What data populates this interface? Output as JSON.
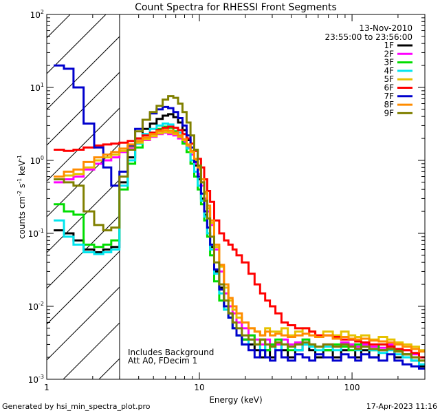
{
  "chart_data": {
    "type": "line",
    "title": "Count Spectra for RHESSI Front Segments",
    "xlabel": "Energy (keV)",
    "ylabel_parts": {
      "main": "counts cm",
      "e1": "-2",
      "mid1": " s",
      "e2": "-1",
      "mid2": " keV",
      "e3": "-1"
    },
    "xscale": "log",
    "yscale": "log",
    "xlim": [
      1,
      300
    ],
    "ylim": [
      0.001,
      100
    ],
    "x_tick_labels": [
      {
        "value": 1,
        "label": "1"
      },
      {
        "value": 10,
        "label": "10"
      },
      {
        "value": 100,
        "label": "100"
      }
    ],
    "y_tick_labels": [
      {
        "value": 0.001,
        "base": "10",
        "exp": "-3"
      },
      {
        "value": 0.01,
        "base": "10",
        "exp": "-2"
      },
      {
        "value": 0.1,
        "base": "10",
        "exp": "-1"
      },
      {
        "value": 1,
        "base": "10",
        "exp": "0"
      },
      {
        "value": 10,
        "base": "10",
        "exp": "1"
      },
      {
        "value": 100,
        "base": "10",
        "exp": "2"
      }
    ],
    "shaded_region": {
      "x_range": [
        1,
        3
      ],
      "style": "diagonal hatch"
    },
    "date": "13-Nov-2010",
    "time_range": "23:55:00 to 23:56:00",
    "annotation_lines": [
      "Includes Background",
      "Att A0, FDecim 1"
    ],
    "legend_position": "top-right",
    "x": [
      1.2,
      1.4,
      1.6,
      1.9,
      2.2,
      2.5,
      2.8,
      3.2,
      3.6,
      4.0,
      4.5,
      5.0,
      5.5,
      6.0,
      6.5,
      7.0,
      7.5,
      8.0,
      8.5,
      9.0,
      9.5,
      10.0,
      10.5,
      11.0,
      11.5,
      12.0,
      13.0,
      14.0,
      15.0,
      16.0,
      17.0,
      18.0,
      20.0,
      22.0,
      24.0,
      26.0,
      28.0,
      30.0,
      33.0,
      36.0,
      40.0,
      45.0,
      50.0,
      55.0,
      60.0,
      70.0,
      80.0,
      90.0,
      100.0,
      110.0,
      120.0,
      140.0,
      160.0,
      180.0,
      200.0,
      230.0,
      260.0,
      290.0
    ],
    "series": [
      {
        "name": "1F",
        "color": "#000000",
        "values": [
          0.11,
          0.1,
          0.08,
          0.06,
          0.055,
          0.06,
          0.065,
          0.5,
          1.1,
          2.0,
          2.7,
          3.2,
          3.7,
          4.1,
          4.3,
          3.9,
          3.3,
          2.6,
          1.9,
          1.3,
          0.85,
          0.55,
          0.3,
          0.18,
          0.1,
          0.065,
          0.03,
          0.018,
          0.01,
          0.008,
          0.006,
          0.004,
          0.0035,
          0.003,
          0.0025,
          0.002,
          0.0025,
          0.002,
          0.003,
          0.0025,
          0.002,
          0.0025,
          0.003,
          0.0025,
          0.002,
          0.0025,
          0.002,
          0.0025,
          0.003,
          0.002,
          0.0025,
          0.002,
          0.0025,
          0.003,
          0.002,
          0.0022,
          0.0018,
          0.0015
        ]
      },
      {
        "name": "2F",
        "color": "#ff00ff",
        "values": [
          0.5,
          0.55,
          0.6,
          0.75,
          0.9,
          1.0,
          1.1,
          1.3,
          1.5,
          1.7,
          1.9,
          2.1,
          2.3,
          2.4,
          2.3,
          2.2,
          2.0,
          1.8,
          1.5,
          1.2,
          0.9,
          0.65,
          0.45,
          0.3,
          0.2,
          0.13,
          0.06,
          0.03,
          0.015,
          0.01,
          0.008,
          0.006,
          0.005,
          0.004,
          0.0035,
          0.003,
          0.0035,
          0.003,
          0.003,
          0.0035,
          0.003,
          0.0032,
          0.0035,
          0.003,
          0.0028,
          0.003,
          0.0028,
          0.0032,
          0.003,
          0.0028,
          0.003,
          0.0028,
          0.0027,
          0.003,
          0.0026,
          0.0025,
          0.0022,
          0.002
        ]
      },
      {
        "name": "3F",
        "color": "#00dd00",
        "values": [
          0.25,
          0.2,
          0.18,
          0.07,
          0.065,
          0.07,
          0.08,
          0.4,
          0.9,
          1.5,
          2.0,
          2.4,
          2.7,
          2.9,
          2.8,
          2.5,
          2.1,
          1.7,
          1.3,
          0.9,
          0.6,
          0.4,
          0.25,
          0.15,
          0.09,
          0.05,
          0.022,
          0.012,
          0.009,
          0.007,
          0.005,
          0.004,
          0.0035,
          0.004,
          0.003,
          0.0035,
          0.0025,
          0.003,
          0.0035,
          0.003,
          0.0025,
          0.003,
          0.0035,
          0.003,
          0.0028,
          0.0025,
          0.003,
          0.0028,
          0.0025,
          0.003,
          0.0028,
          0.0025,
          0.003,
          0.0028,
          0.0025,
          0.0022,
          0.002,
          0.0018
        ]
      },
      {
        "name": "4F",
        "color": "#00e5ee",
        "values": [
          0.15,
          0.09,
          0.07,
          0.055,
          0.052,
          0.055,
          0.06,
          0.45,
          1.0,
          1.7,
          2.3,
          2.7,
          3.0,
          3.2,
          3.1,
          2.8,
          2.4,
          1.9,
          1.45,
          1.0,
          0.7,
          0.45,
          0.28,
          0.17,
          0.1,
          0.06,
          0.028,
          0.015,
          0.009,
          0.007,
          0.005,
          0.004,
          0.003,
          0.0035,
          0.003,
          0.0025,
          0.003,
          0.0028,
          0.0025,
          0.003,
          0.0028,
          0.0025,
          0.003,
          0.0028,
          0.0025,
          0.0028,
          0.0025,
          0.003,
          0.0028,
          0.0025,
          0.0028,
          0.0025,
          0.0023,
          0.0025,
          0.0022,
          0.002,
          0.0018,
          0.0016
        ]
      },
      {
        "name": "5F",
        "color": "#e6c200",
        "values": [
          0.6,
          0.62,
          0.65,
          0.8,
          1.0,
          1.1,
          1.2,
          1.35,
          1.55,
          1.75,
          1.95,
          2.15,
          2.35,
          2.45,
          2.4,
          2.3,
          2.1,
          1.9,
          1.6,
          1.3,
          1.0,
          0.75,
          0.5,
          0.35,
          0.22,
          0.14,
          0.065,
          0.035,
          0.018,
          0.012,
          0.009,
          0.007,
          0.006,
          0.005,
          0.0045,
          0.004,
          0.005,
          0.0045,
          0.0045,
          0.005,
          0.004,
          0.0045,
          0.005,
          0.0045,
          0.004,
          0.0045,
          0.004,
          0.0045,
          0.004,
          0.0038,
          0.004,
          0.0035,
          0.0038,
          0.0035,
          0.0032,
          0.003,
          0.0028,
          0.0025
        ]
      },
      {
        "name": "6F",
        "color": "#ff0000",
        "values": [
          1.4,
          1.35,
          1.4,
          1.5,
          1.6,
          1.65,
          1.7,
          1.75,
          1.85,
          2.0,
          2.2,
          2.4,
          2.6,
          2.8,
          2.9,
          2.8,
          2.6,
          2.3,
          2.0,
          1.7,
          1.35,
          1.05,
          0.8,
          0.55,
          0.38,
          0.27,
          0.15,
          0.1,
          0.08,
          0.07,
          0.06,
          0.05,
          0.04,
          0.028,
          0.02,
          0.015,
          0.012,
          0.01,
          0.008,
          0.006,
          0.0055,
          0.005,
          0.005,
          0.0045,
          0.004,
          0.004,
          0.0038,
          0.0035,
          0.0035,
          0.0033,
          0.0032,
          0.003,
          0.003,
          0.0028,
          0.0026,
          0.0025,
          0.0023,
          0.002
        ]
      },
      {
        "name": "7F",
        "color": "#0000cd",
        "values": [
          20.0,
          18.0,
          10.0,
          3.2,
          1.5,
          0.8,
          0.45,
          0.7,
          1.6,
          2.7,
          3.6,
          4.4,
          5.0,
          5.4,
          5.2,
          4.6,
          3.8,
          3.0,
          2.2,
          1.5,
          0.95,
          0.6,
          0.35,
          0.2,
          0.12,
          0.07,
          0.032,
          0.017,
          0.01,
          0.007,
          0.005,
          0.004,
          0.003,
          0.0025,
          0.002,
          0.0025,
          0.002,
          0.0018,
          0.0025,
          0.002,
          0.0018,
          0.0022,
          0.002,
          0.0018,
          0.0022,
          0.002,
          0.0018,
          0.0022,
          0.002,
          0.0018,
          0.0022,
          0.002,
          0.0018,
          0.0022,
          0.0018,
          0.0016,
          0.0015,
          0.0014
        ]
      },
      {
        "name": "8F",
        "color": "#ff8c00",
        "values": [
          0.6,
          0.7,
          0.75,
          0.95,
          1.1,
          1.2,
          1.3,
          1.45,
          1.65,
          1.85,
          2.05,
          2.3,
          2.5,
          2.6,
          2.55,
          2.4,
          2.2,
          1.95,
          1.65,
          1.35,
          1.05,
          0.8,
          0.55,
          0.37,
          0.24,
          0.15,
          0.07,
          0.037,
          0.02,
          0.013,
          0.01,
          0.008,
          0.006,
          0.005,
          0.0045,
          0.004,
          0.0045,
          0.004,
          0.0042,
          0.004,
          0.0038,
          0.004,
          0.0042,
          0.004,
          0.0038,
          0.004,
          0.0036,
          0.0038,
          0.0036,
          0.0035,
          0.0036,
          0.0034,
          0.0033,
          0.0032,
          0.003,
          0.0028,
          0.0026,
          0.0024
        ]
      },
      {
        "name": "9F",
        "color": "#808000",
        "values": [
          0.55,
          0.5,
          0.45,
          0.2,
          0.13,
          0.11,
          0.12,
          0.6,
          1.4,
          2.5,
          3.6,
          4.6,
          5.6,
          6.8,
          7.6,
          7.2,
          6.0,
          4.6,
          3.3,
          2.2,
          1.4,
          0.85,
          0.5,
          0.28,
          0.16,
          0.09,
          0.04,
          0.02,
          0.012,
          0.008,
          0.006,
          0.005,
          0.004,
          0.0035,
          0.003,
          0.0035,
          0.003,
          0.0028,
          0.0032,
          0.003,
          0.0028,
          0.003,
          0.0032,
          0.003,
          0.0028,
          0.003,
          0.0028,
          0.003,
          0.0028,
          0.0026,
          0.0028,
          0.0026,
          0.0025,
          0.0026,
          0.0024,
          0.0022,
          0.002,
          0.0018
        ]
      }
    ]
  },
  "footer": {
    "left": "Generated by hsi_min_spectra_plot.pro",
    "right": "17-Apr-2023 11:16"
  }
}
